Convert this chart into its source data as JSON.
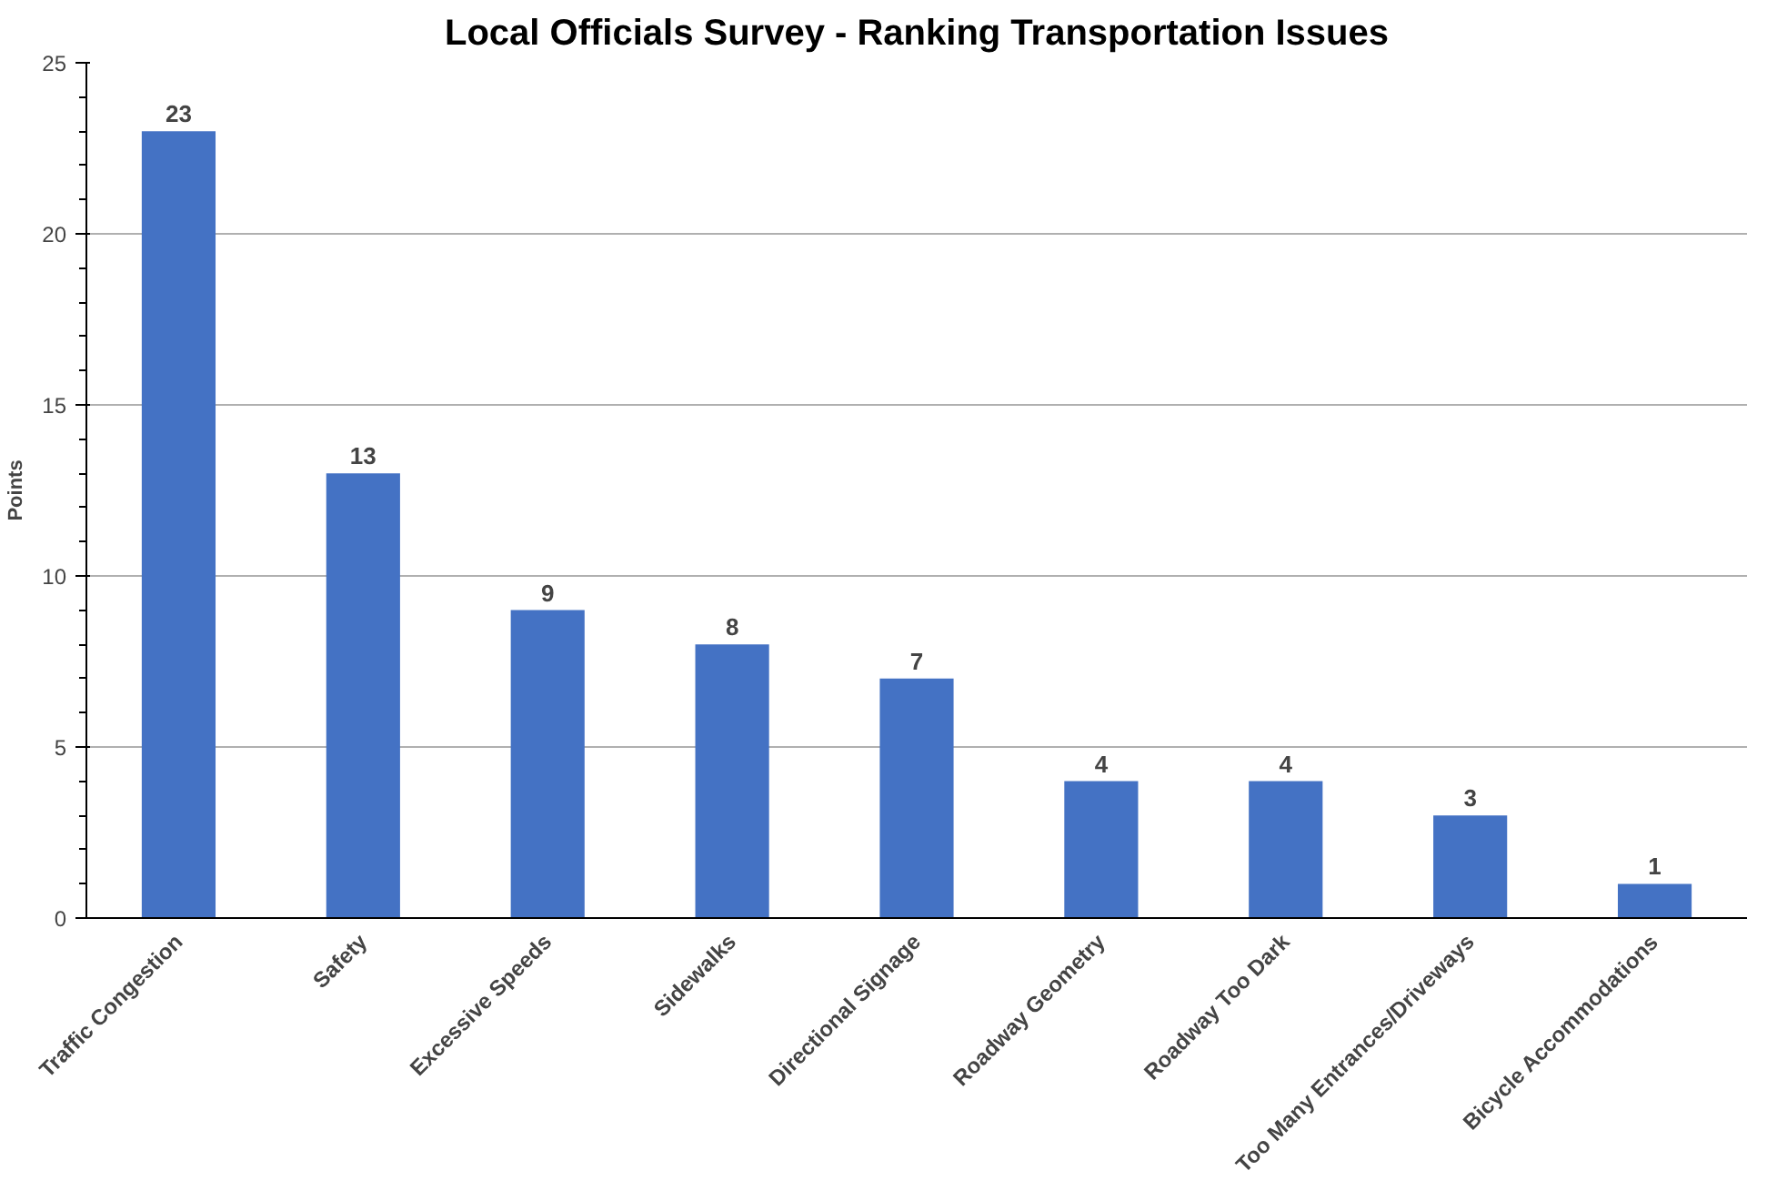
{
  "chart_data": {
    "type": "bar",
    "title": "Local Officials Survey - Ranking Transportation Issues",
    "ylabel": "Points",
    "categories": [
      "Traffic Congestion",
      "Safety",
      "Excessive Speeds",
      "Sidewalks",
      "Directional Signage",
      "Roadway Geometry",
      "Roadway Too Dark",
      "Too Many Entrances/Driveways",
      "Bicycle Accommodations"
    ],
    "values": [
      23,
      13,
      9,
      8,
      7,
      4,
      4,
      3,
      1
    ],
    "color": "#4472c4",
    "ylim": [
      0,
      25
    ],
    "yticks": [
      0,
      5,
      10,
      15,
      20,
      25
    ],
    "grid": "y",
    "data_labels": true
  }
}
